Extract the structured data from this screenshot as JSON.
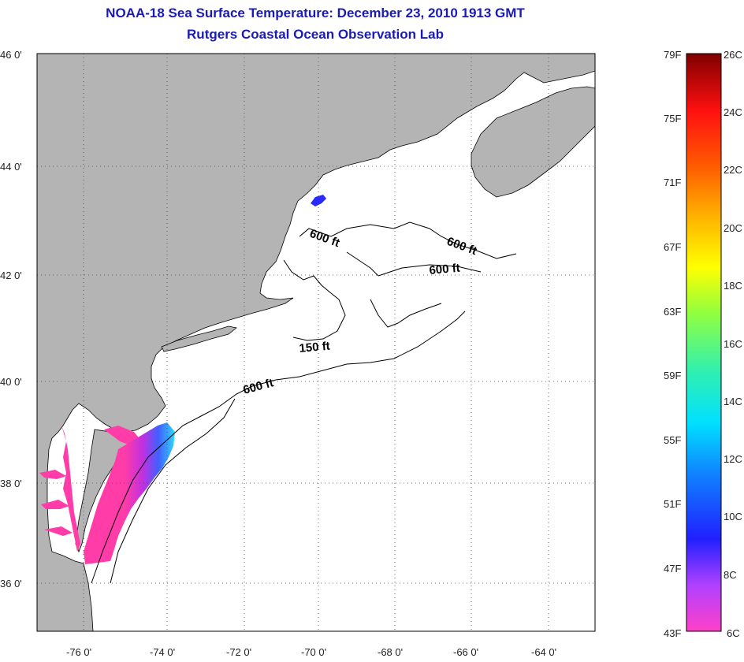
{
  "title": {
    "line1": "NOAA-18 Sea Surface Temperature:  December 23, 2010 1913 GMT",
    "line2": "Rutgers Coastal Ocean Observation Lab"
  },
  "map": {
    "lat_labels": [
      "46 0'",
      "44 0'",
      "42 0'",
      "40 0'",
      "38 0'",
      "36 0'"
    ],
    "lon_labels": [
      "-76 0'",
      "-74 0'",
      "-72 0'",
      "-70 0'",
      "-68 0'",
      "-66 0'",
      "-64 0'"
    ],
    "depth_labels": [
      "600 ft",
      "600 ft",
      "600 ft",
      "150 ft",
      "600 ft"
    ],
    "colors": {
      "land": "#b4b4b4",
      "sst_warm": "#ff3ca8",
      "sst_cool": "#2a2aff",
      "sst_mid": "#b42cff",
      "cyan": "#00e6ff"
    }
  },
  "colorbar": {
    "fahrenheit": [
      "79F",
      "75F",
      "71F",
      "67F",
      "63F",
      "59F",
      "55F",
      "51F",
      "47F",
      "43F"
    ],
    "celsius": [
      "26C",
      "24C",
      "22C",
      "20C",
      "18C",
      "16C",
      "14C",
      "12C",
      "10C",
      "8C",
      "6C"
    ]
  }
}
